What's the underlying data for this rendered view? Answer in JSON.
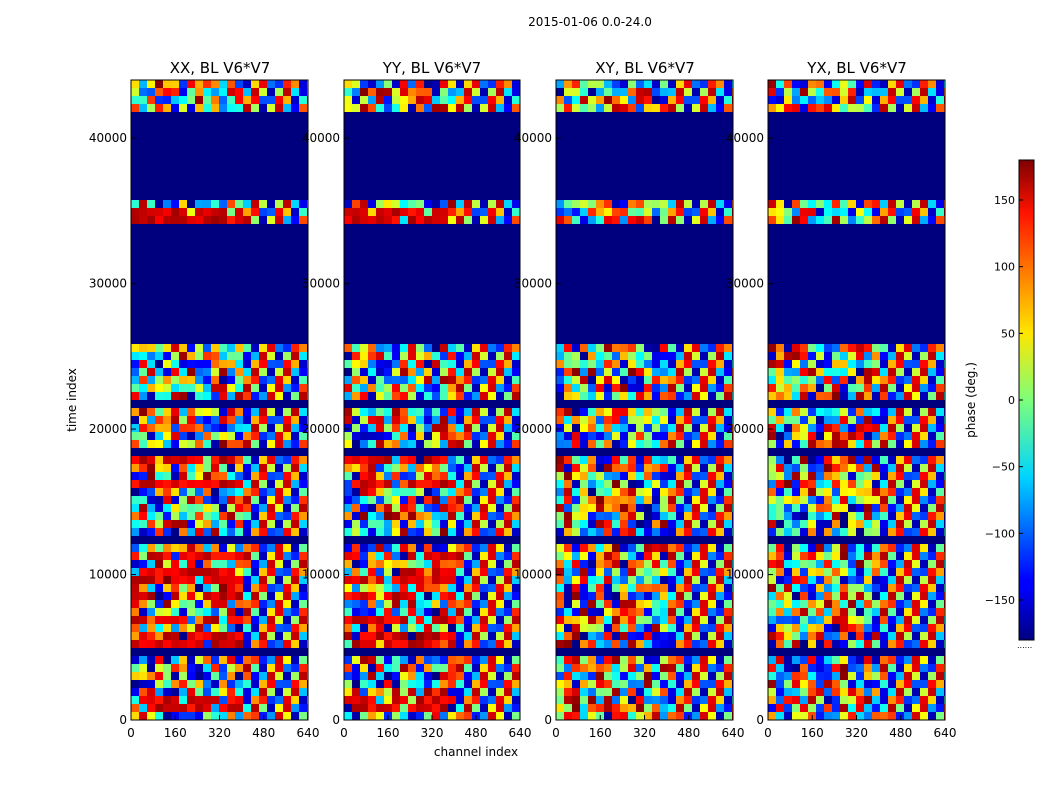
{
  "suptitle": "2015-01-06 0.0-24.0",
  "chart_data": {
    "type": "heatmap",
    "shared": {
      "xlabel": "channel index",
      "ylabel": "time index",
      "xlim": [
        0,
        640
      ],
      "ylim": [
        0,
        44000
      ],
      "xticks": [
        0,
        160,
        320,
        480,
        640
      ],
      "yticks": [
        0,
        10000,
        20000,
        30000,
        40000
      ],
      "ytick_labels": [
        "0",
        "10000",
        "20000",
        "30000",
        "40000"
      ],
      "flagged_time_ranges": [
        [
          26000,
          34000
        ],
        [
          35600,
          41800
        ],
        [
          4500,
          5000
        ],
        [
          21600,
          22000
        ],
        [
          18200,
          18600
        ],
        [
          2000,
          2200
        ],
        [
          12200,
          12400
        ]
      ]
    },
    "panels": [
      {
        "title": "XX, BL V6*V7",
        "palette_bias": 0.85,
        "red_bands": [
          [
            9500,
            10400
          ],
          [
            8000,
            8600
          ],
          [
            6500,
            7200
          ],
          [
            5200,
            5800
          ],
          [
            11000,
            11400
          ],
          [
            16000,
            16600
          ],
          [
            17600,
            18100
          ],
          [
            34300,
            35400
          ],
          [
            600,
            1800
          ]
        ]
      },
      {
        "title": "YY, BL V6*V7",
        "palette_bias": 0.72,
        "red_bands": [
          [
            9500,
            10400
          ],
          [
            8000,
            8600
          ],
          [
            6500,
            7200
          ],
          [
            5200,
            5800
          ],
          [
            11000,
            11400
          ],
          [
            16000,
            16600
          ],
          [
            17600,
            18100
          ],
          [
            34300,
            35400
          ],
          [
            600,
            1800
          ]
        ]
      },
      {
        "title": "XY, BL V6*V7",
        "palette_bias": 0.35,
        "red_bands": []
      },
      {
        "title": "YX, BL V6*V7",
        "palette_bias": 0.45,
        "red_bands": []
      }
    ],
    "colorbar": {
      "label": "phase (deg.)",
      "range": [
        -180,
        180
      ],
      "ticks": [
        150,
        100,
        50,
        0,
        -50,
        -100,
        -150
      ],
      "tick_labels": [
        "150",
        "100",
        "50",
        "0",
        "−50",
        "−100",
        "−150"
      ],
      "colormap": "jet"
    }
  }
}
